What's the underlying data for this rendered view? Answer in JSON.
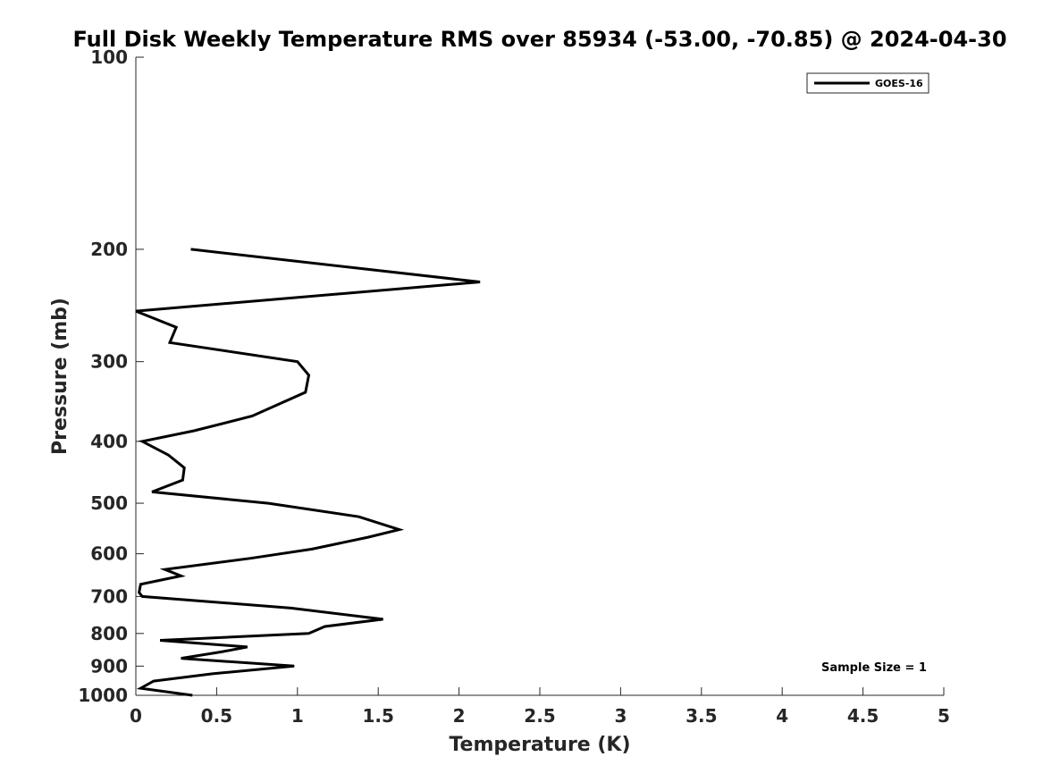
{
  "chart_data": {
    "type": "line",
    "title": "Full Disk Weekly Temperature RMS over 85934 (-53.00, -70.85) @ 2024-04-30",
    "xlabel": "Temperature (K)",
    "ylabel": "Pressure (mb)",
    "xlim": [
      0,
      5
    ],
    "ylim": [
      100,
      1000
    ],
    "yscale": "log",
    "yreversed": true,
    "x_ticks": [
      0,
      0.5,
      1,
      1.5,
      2,
      2.5,
      3,
      3.5,
      4,
      4.5,
      5
    ],
    "x_tick_labels": [
      "0",
      "0.5",
      "1",
      "1.5",
      "2",
      "2.5",
      "3",
      "3.5",
      "4",
      "4.5",
      "5"
    ],
    "y_ticks": [
      100,
      200,
      300,
      400,
      500,
      600,
      700,
      800,
      900,
      1000
    ],
    "y_tick_labels": [
      "100",
      "200",
      "300",
      "400",
      "500",
      "600",
      "700",
      "800",
      "900",
      "1000"
    ],
    "grid": false,
    "legend_position": "top-right",
    "annotation": "Sample Size = 1",
    "series": [
      {
        "name": "GOES-16",
        "color": "#000000",
        "x": [
          0.34,
          2.13,
          0.0,
          0.25,
          0.21,
          1.0,
          1.07,
          1.05,
          0.72,
          0.36,
          0.04,
          0.2,
          0.3,
          0.29,
          0.1,
          0.82,
          1.38,
          1.63,
          1.44,
          1.09,
          0.71,
          0.18,
          0.28,
          0.03,
          0.02,
          0.04,
          0.96,
          1.53,
          1.17,
          1.07,
          0.15,
          0.69,
          0.53,
          0.28,
          0.98,
          0.48,
          0.11,
          0.03,
          0.35
        ],
        "y": [
          200,
          225,
          250,
          265,
          280,
          300,
          315,
          335,
          365,
          385,
          400,
          420,
          440,
          460,
          480,
          500,
          525,
          550,
          565,
          590,
          610,
          635,
          650,
          670,
          690,
          700,
          730,
          760,
          780,
          800,
          820,
          840,
          855,
          875,
          900,
          925,
          950,
          975,
          1000
        ]
      }
    ]
  }
}
